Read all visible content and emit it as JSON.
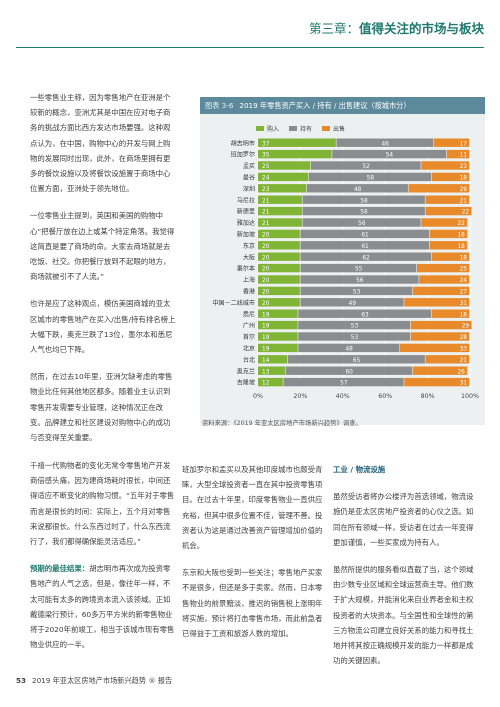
{
  "header": {
    "chapter": "第三章：",
    "title": "值得关注的市场与板块"
  },
  "left_top": [
    "一些零售业主称，因为零售地产在亚洲是个较新的概念，亚洲尤其是中国在应对电子商务的挑战方面比西方发达市场要强。这种观点认为，在中国，购物中心的开发与网上购物的发展同时出现，此外，在商场里拥有更多的餐饮设施以及将餐饮设施置于商场中心位置方面，亚洲处于领先地位。",
    "一位零售业主提到，英国和美国的购物中心“把餐厅放在边上或某个特定角落。我觉得这简直是要了商场的命。大家去商场就是去吃饭、社交。你把餐厅放到不起眼的地方，商场就被引不了人流。”",
    "也许是应了这种观点，模仿美国商城的亚太区城市的零售地产在买入/出售/持有排名榜上大幅下跌，奥克兰跌了13位，墨尔本和悉尼人气也均已下降。",
    "然而，在过去10年里，亚洲欠缺考虑的零售物业比任何其他地区都多。随着业主认识到零售开发需要专业管理，这种情况正在改变。品牌建立和社区建设对购物中心的成功与否变得至关重要。"
  ],
  "left_bottom_p1": "千禧一代购物者的变化无常令零售地产开发商倍感头痛，因为建商场耗时很长，中间还得适应不断变化的购物习惯。“五年对于零售而言是很长的时间：实际上，五个月对零售来说都很长。什么东西过时了，什么东西流行了，我们都得确保能灵活适应。”",
  "left_bottom_p2_head": "预期的最佳结果：",
  "left_bottom_p2_body": "胡志明市再次成为投资零售地产的人气之选，但是，像往年一样，不太可能有太多的跨境资本流入该领域。正如戴德梁行预计，60多万平方米的新零售物业将于2020年前竣工，相当于该城市现有零售物业供应的一半。",
  "mid_col": [
    "班加罗尔和孟买以及其他印度城市也颇受青睐，大型全球投资者一直在其中投资零售项目。在过去十年里，印度零售物业一直供应充裕，但其中很多位置不佳，管理不善。投资者认为这是通过改善资产管理增加价值的机会。",
    "东京和大阪也受到一些关注；零售地产买家不是很多，但还是多于卖家。然而，日本零售物业的前景黯淡，推迟的销售税上涨明年将实施，预计将打击零售市场，而此前急者已得益于工资和旅游人数的增加。"
  ],
  "right_col_head": "工业 / 物流设施",
  "right_col": [
    "虽然受访者将办公楼评为首选领域，物流设施仍是亚太区房地产投资者的心仪之选。如同在所有领域一样，受访者在过去一年变得更加谨慎，一些买家成为持有人。",
    "虽然所提供的服务看似直截了当，这个领域由少数专业区域和全球运营商主导。他们数于扩大规模，并能消化来自业界者金和主权投资者的大块资本。与全国性和全球性的第三方物流公司建立良好关系的能力和寻找土地并将其按正确规模开发的能力一样都是成功的关键因素。"
  ],
  "figure": {
    "label": "图表 3-6",
    "title": "2019 年零售资产买入 / 持有 / 出售建议（按城市分）",
    "source": "资料来源：《2019 年亚太区房地产市场新兴趋势》调查。",
    "legend": [
      "购入",
      "持有",
      "出售"
    ]
  },
  "chart_data": {
    "type": "bar",
    "orientation": "horizontal",
    "stacked": true,
    "categories": [
      "胡志明市",
      "班加罗尔",
      "孟买",
      "曼谷",
      "深圳",
      "马尼拉",
      "新德里",
      "雅加达",
      "新加坡",
      "东京",
      "大阪",
      "墨尔本",
      "上海",
      "香港",
      "中国－二线城市",
      "悉尼",
      "广州",
      "首尔",
      "北京",
      "台北",
      "奥克兰",
      "吉隆坡"
    ],
    "series": [
      {
        "name": "购入",
        "color": "#80b435",
        "values": [
          37,
          35,
          25,
          24,
          23,
          21,
          21,
          21,
          20,
          20,
          20,
          20,
          20,
          20,
          20,
          19,
          19,
          19,
          19,
          14,
          13,
          12
        ]
      },
      {
        "name": "持有",
        "color": "#8a8d8f",
        "values": [
          46,
          54,
          52,
          58,
          48,
          58,
          58,
          56,
          61,
          61,
          62,
          55,
          56,
          53,
          49,
          63,
          53,
          53,
          48,
          65,
          60,
          57
        ]
      },
      {
        "name": "出售",
        "color": "#e88a2a",
        "values": [
          17,
          11,
          23,
          18,
          29,
          21,
          22,
          22,
          18,
          18,
          18,
          25,
          24,
          27,
          31,
          18,
          29,
          28,
          33,
          21,
          26,
          31
        ]
      }
    ],
    "xlim": [
      0,
      100
    ],
    "xticks": [
      "0%",
      "20%",
      "40%",
      "60%",
      "80%",
      "100%"
    ]
  },
  "footer": {
    "page": "53",
    "text": "2019 年亚太区房地产市场新兴趋势 ® 报告"
  }
}
